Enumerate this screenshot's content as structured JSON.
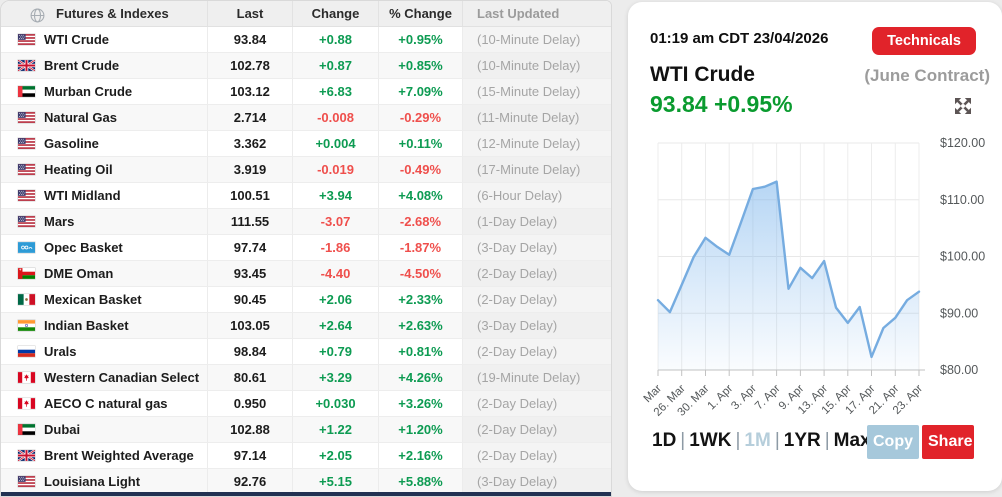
{
  "table": {
    "headers": {
      "name": "Futures & Indexes",
      "last": "Last",
      "change": "Change",
      "pct": "% Change",
      "updated": "Last Updated"
    },
    "rows": [
      {
        "flag": "us",
        "name": "WTI Crude",
        "last": "93.84",
        "change": "+0.88",
        "pct": "+0.95%",
        "updated": "(10-Minute Delay)"
      },
      {
        "flag": "gb",
        "name": "Brent Crude",
        "last": "102.78",
        "change": "+0.87",
        "pct": "+0.85%",
        "updated": "(10-Minute Delay)"
      },
      {
        "flag": "ae",
        "name": "Murban Crude",
        "last": "103.12",
        "change": "+6.83",
        "pct": "+7.09%",
        "updated": "(15-Minute Delay)"
      },
      {
        "flag": "us",
        "name": "Natural Gas",
        "last": "2.714",
        "change": "-0.008",
        "pct": "-0.29%",
        "updated": "(11-Minute Delay)"
      },
      {
        "flag": "us",
        "name": "Gasoline",
        "last": "3.362",
        "change": "+0.004",
        "pct": "+0.11%",
        "updated": "(12-Minute Delay)"
      },
      {
        "flag": "us",
        "name": "Heating Oil",
        "last": "3.919",
        "change": "-0.019",
        "pct": "-0.49%",
        "updated": "(17-Minute Delay)"
      },
      {
        "flag": "us",
        "name": "WTI Midland",
        "last": "100.51",
        "change": "+3.94",
        "pct": "+4.08%",
        "updated": "(6-Hour Delay)"
      },
      {
        "flag": "us",
        "name": "Mars",
        "last": "111.55",
        "change": "-3.07",
        "pct": "-2.68%",
        "updated": "(1-Day Delay)"
      },
      {
        "flag": "opec",
        "name": "Opec Basket",
        "last": "97.74",
        "change": "-1.86",
        "pct": "-1.87%",
        "updated": "(3-Day Delay)"
      },
      {
        "flag": "om",
        "name": "DME Oman",
        "last": "93.45",
        "change": "-4.40",
        "pct": "-4.50%",
        "updated": "(2-Day Delay)"
      },
      {
        "flag": "mx",
        "name": "Mexican Basket",
        "last": "90.45",
        "change": "+2.06",
        "pct": "+2.33%",
        "updated": "(2-Day Delay)"
      },
      {
        "flag": "in",
        "name": "Indian Basket",
        "last": "103.05",
        "change": "+2.64",
        "pct": "+2.63%",
        "updated": "(3-Day Delay)"
      },
      {
        "flag": "ru",
        "name": "Urals",
        "last": "98.84",
        "change": "+0.79",
        "pct": "+0.81%",
        "updated": "(2-Day Delay)"
      },
      {
        "flag": "ca",
        "name": "Western Canadian Select",
        "last": "80.61",
        "change": "+3.29",
        "pct": "+4.26%",
        "updated": "(19-Minute Delay)"
      },
      {
        "flag": "ca",
        "name": "AECO C natural gas",
        "last": "0.950",
        "change": "+0.030",
        "pct": "+3.26%",
        "updated": "(2-Day Delay)"
      },
      {
        "flag": "ae",
        "name": "Dubai",
        "last": "102.88",
        "change": "+1.22",
        "pct": "+1.20%",
        "updated": "(2-Day Delay)"
      },
      {
        "flag": "gb",
        "name": "Brent Weighted Average",
        "last": "97.14",
        "change": "+2.05",
        "pct": "+2.16%",
        "updated": "(2-Day Delay)"
      },
      {
        "flag": "us",
        "name": "Louisiana Light",
        "last": "92.76",
        "change": "+5.15",
        "pct": "+5.88%",
        "updated": "(3-Day Delay)"
      }
    ]
  },
  "panel": {
    "timestamp": "01:19 am CDT 23/04/2026",
    "technicals_label": "Technicals",
    "title": "WTI Crude",
    "contract": "(June Contract)",
    "price": "93.84 +0.95%",
    "timeframes": [
      "1D",
      "1WK",
      "1M",
      "1YR",
      "Max"
    ],
    "active_timeframe": "1M",
    "copy_label": "Copy",
    "share_label": "Share"
  },
  "chart_data": {
    "type": "area",
    "title": "WTI Crude (June Contract) - 1M",
    "x": [
      "24. Mar",
      "25. Mar",
      "26. Mar",
      "27. Mar",
      "30. Mar",
      "31. Mar",
      "1. Apr",
      "2. Apr",
      "3. Apr",
      "6. Apr",
      "7. Apr",
      "8. Apr",
      "9. Apr",
      "10. Apr",
      "13. Apr",
      "14. Apr",
      "15. Apr",
      "16. Apr",
      "17. Apr",
      "20. Apr",
      "21. Apr",
      "22. Apr",
      "23. Apr"
    ],
    "values": [
      92.3,
      90.2,
      95.0,
      99.9,
      103.3,
      101.7,
      100.3,
      106.0,
      111.9,
      112.3,
      113.2,
      94.3,
      98.0,
      96.2,
      99.2,
      91.0,
      88.3,
      91.1,
      82.3,
      87.4,
      89.2,
      92.3,
      93.8
    ],
    "x_ticks": [
      {
        "index": 0,
        "label": "Mar"
      },
      {
        "index": 2,
        "label": "26. Mar"
      },
      {
        "index": 4,
        "label": "30. Mar"
      },
      {
        "index": 6,
        "label": "1. Apr"
      },
      {
        "index": 8,
        "label": "3. Apr"
      },
      {
        "index": 10,
        "label": "7. Apr"
      },
      {
        "index": 12,
        "label": "9. Apr"
      },
      {
        "index": 14,
        "label": "13. Apr"
      },
      {
        "index": 16,
        "label": "15. Apr"
      },
      {
        "index": 18,
        "label": "17. Apr"
      },
      {
        "index": 20,
        "label": "21. Apr"
      },
      {
        "index": 22,
        "label": "23. Apr"
      }
    ],
    "y_ticks": [
      {
        "value": 120,
        "label": "$120.00"
      },
      {
        "value": 110,
        "label": "$110.00"
      },
      {
        "value": 100,
        "label": "$100.00"
      },
      {
        "value": 90,
        "label": "$90.00"
      },
      {
        "value": 80,
        "label": "$80.00"
      }
    ],
    "ylim": [
      80,
      120
    ],
    "grid": true,
    "legend": false
  },
  "colors": {
    "green": "#0d9b52",
    "red": "#ef4f4c",
    "price_green": "#0a9b2f",
    "brand_red": "#e1232a",
    "copy_blue": "#a6c8db",
    "active_timeframe": "#b6cedb",
    "chart_line": "#76ace0",
    "chart_fill_top": "rgba(124,181,236,0.55)",
    "chart_fill_bottom": "rgba(124,181,236,0.04)",
    "navy_strip": "#223152"
  }
}
